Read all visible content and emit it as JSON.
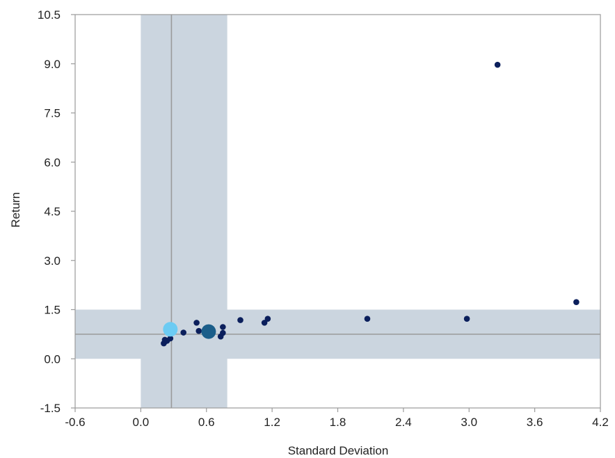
{
  "chart_data": {
    "type": "scatter",
    "title": "",
    "xlabel": "Standard Deviation",
    "ylabel": "Return",
    "xlim": [
      -0.6,
      4.2
    ],
    "ylim": [
      -1.5,
      10.5
    ],
    "x_ticks": [
      -0.6,
      0.0,
      0.6,
      1.2,
      1.8,
      2.4,
      3.0,
      3.6,
      4.2
    ],
    "x_tick_labels": [
      "-0.6",
      "0.0",
      "0.6",
      "1.2",
      "1.8",
      "2.4",
      "3.0",
      "3.6",
      "4.2"
    ],
    "y_ticks": [
      10.5,
      9.0,
      7.5,
      6.0,
      4.5,
      3.0,
      1.5,
      0.0,
      -1.5
    ],
    "y_tick_labels": [
      "10.5",
      "9.0",
      "7.5",
      "6.0",
      "4.5",
      "3.0",
      "1.5",
      "0.0",
      "-1.5"
    ],
    "grid": false,
    "legend": "none",
    "reference_lines": {
      "x": 0.28,
      "y": 0.75
    },
    "shaded_bands": {
      "x_range": [
        0.0,
        0.79
      ],
      "y_range": [
        0.0,
        1.5
      ]
    },
    "series": [
      {
        "points": [
          {
            "x": 0.21,
            "y": 0.47
          },
          {
            "x": 0.22,
            "y": 0.52
          },
          {
            "x": 0.22,
            "y": 0.58
          },
          {
            "x": 0.24,
            "y": 0.55
          },
          {
            "x": 0.27,
            "y": 0.62
          },
          {
            "x": 0.39,
            "y": 0.8
          },
          {
            "x": 0.51,
            "y": 1.1
          },
          {
            "x": 0.53,
            "y": 0.85
          },
          {
            "x": 0.73,
            "y": 0.68
          },
          {
            "x": 0.75,
            "y": 0.79
          },
          {
            "x": 0.75,
            "y": 0.97
          },
          {
            "x": 0.91,
            "y": 1.18
          },
          {
            "x": 1.13,
            "y": 1.1
          },
          {
            "x": 1.16,
            "y": 1.22
          },
          {
            "x": 2.07,
            "y": 1.22
          },
          {
            "x": 2.98,
            "y": 1.22
          },
          {
            "x": 3.26,
            "y": 8.97
          },
          {
            "x": 3.98,
            "y": 1.73
          }
        ]
      },
      {
        "points": [
          {
            "x": 0.27,
            "y": 0.9
          }
        ]
      },
      {
        "points": [
          {
            "x": 0.62,
            "y": 0.83
          }
        ]
      }
    ],
    "colors": {
      "band": "#cbd5df",
      "reference_line": "#9a9a9a",
      "frame": "#9a9a9a",
      "point": "#0b1f5c",
      "highlight_light": "#6ccbf3",
      "highlight_dark": "#1b5e8a"
    }
  }
}
